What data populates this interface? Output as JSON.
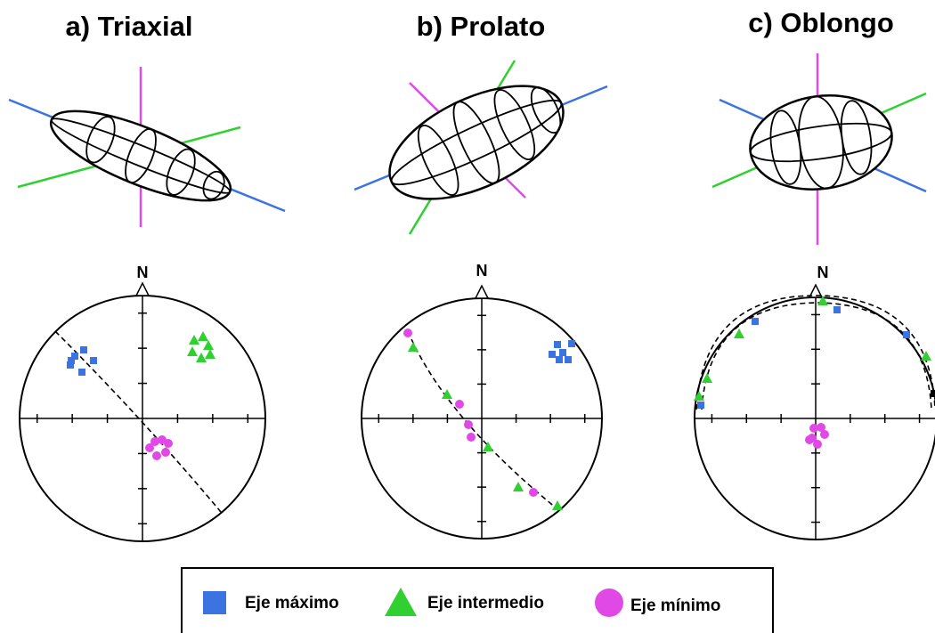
{
  "panels": [
    {
      "title": "a) Triaxial",
      "north": "N"
    },
    {
      "title": "b) Prolato",
      "north": "N"
    },
    {
      "title": "c) Oblongo",
      "north": "N"
    }
  ],
  "legend": {
    "items": [
      "Eje máximo",
      "Eje intermedio",
      "Eje mínimo"
    ]
  }
}
